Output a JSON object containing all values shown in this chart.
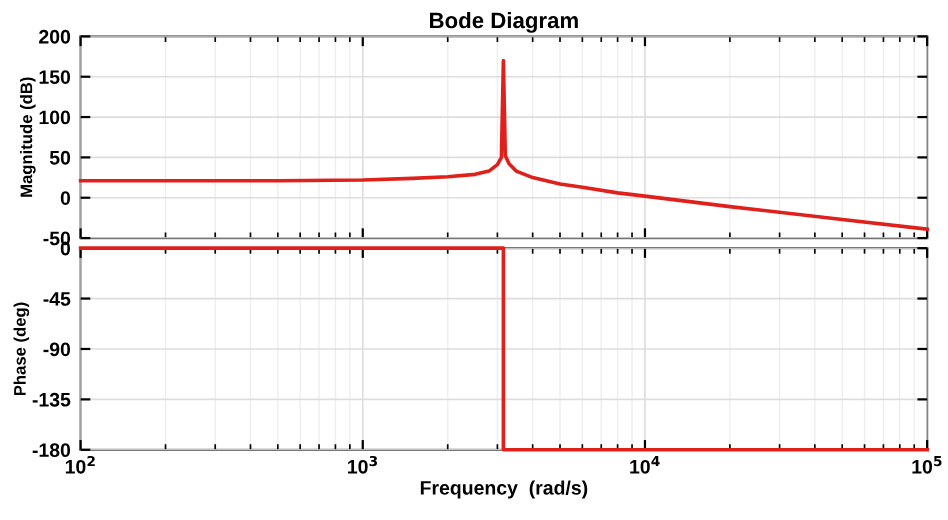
{
  "chart_data": [
    {
      "type": "line",
      "title": "Bode Diagram",
      "ylabel": "Magnitude (dB)",
      "log": "x",
      "grid": true,
      "tick_labels": "y",
      "xlim": [
        100,
        100000
      ],
      "xticks": [
        {
          "value": 100,
          "label": null
        },
        {
          "value": 1000,
          "label": null
        },
        {
          "value": 10000,
          "label": null
        },
        {
          "value": 100000,
          "label": null
        }
      ],
      "ylim": [
        -50,
        200
      ],
      "yticks": [
        -50,
        0,
        50,
        100,
        150,
        200
      ],
      "series": [
        {
          "color": "#e0201b",
          "x": [
            100,
            200,
            500,
            1000,
            1500,
            2000,
            2500,
            2800,
            3000,
            3100,
            3150,
            3200,
            3300,
            3500,
            4000,
            5000,
            6000,
            8000,
            10000,
            20000,
            50000,
            100000
          ],
          "values": [
            21,
            21,
            21,
            22,
            24,
            26,
            29,
            33,
            41,
            50,
            170,
            52,
            42,
            33,
            25,
            17,
            13,
            6,
            2,
            -11,
            -27,
            -39
          ]
        }
      ]
    },
    {
      "type": "line",
      "xlabel": "Frequency  (rad/s)",
      "ylabel": "Phase (deg)",
      "log": "x",
      "grid": true,
      "xlim": [
        100,
        100000
      ],
      "xticks": [
        {
          "value": 100,
          "label": "10$^{2}$"
        },
        {
          "value": 1000,
          "label": "10$^{3}$"
        },
        {
          "value": 10000,
          "label": "10$^{4}$"
        },
        {
          "value": 100000,
          "label": "10$^{5}$"
        }
      ],
      "ylim": [
        -180,
        0
      ],
      "yticks": [
        -180,
        -135,
        -90,
        -45,
        0
      ],
      "series": [
        {
          "color": "#e0201b",
          "x": [
            100,
            3150,
            3150,
            100000
          ],
          "values": [
            0,
            0,
            -180,
            -180
          ]
        }
      ]
    }
  ]
}
